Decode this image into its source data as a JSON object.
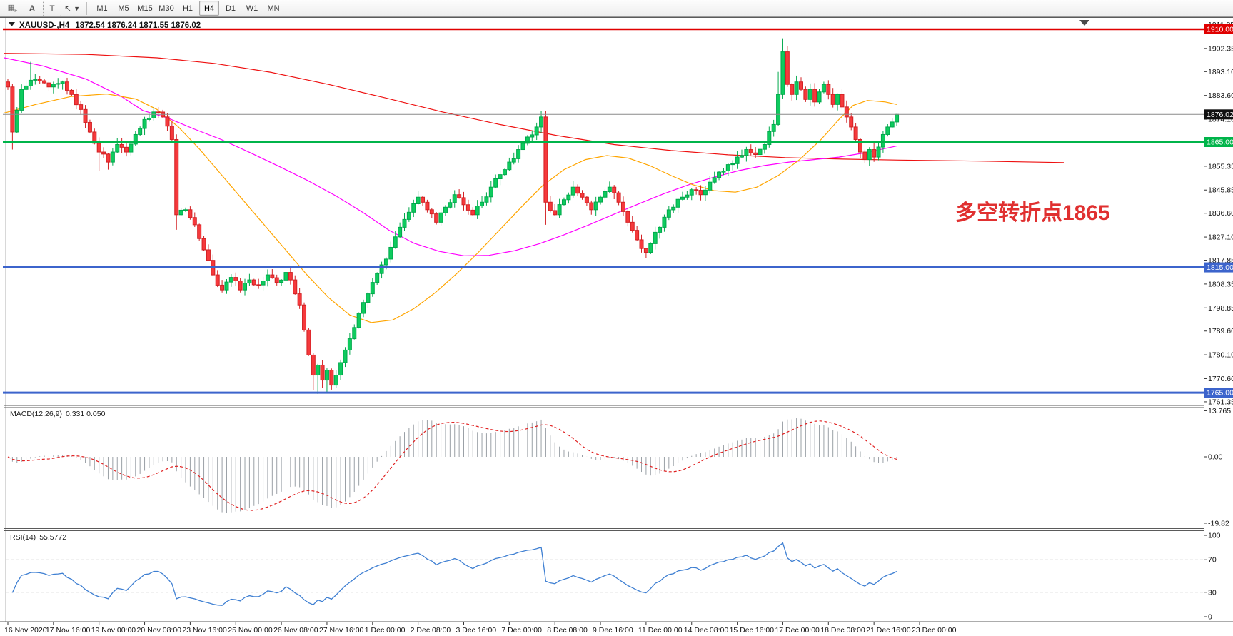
{
  "toolbar": {
    "icon_buttons": [
      {
        "name": "chart-grid-icon",
        "glyph": "▦"
      },
      {
        "name": "font-a-icon",
        "glyph": "A"
      },
      {
        "name": "text-label-icon",
        "glyph": "T"
      },
      {
        "name": "cursor-tool-icon",
        "glyph": "↖"
      },
      {
        "name": "cursor-dropdown-caret-icon",
        "glyph": "▾"
      }
    ],
    "timeframes": [
      "M1",
      "M5",
      "M15",
      "M30",
      "H1",
      "H4",
      "D1",
      "W1",
      "MN"
    ],
    "active_timeframe": "H4"
  },
  "title_bar": {
    "symbol_label": "XAUUSD-,H4",
    "ohlc_text": "1872.54 1876.24 1871.55 1876.02"
  },
  "annotation": {
    "text": "多空转折点1865",
    "color": "#e03030"
  },
  "indicators": {
    "macd_label": "MACD(12,26,9)",
    "macd_values": "0.331 0.050",
    "rsi_label": "RSI(14)",
    "rsi_value": "55.5772"
  },
  "axis": {
    "price_ticks": [
      {
        "label": "1911.85",
        "price": 1911.85
      },
      {
        "label": "1902.35",
        "price": 1902.35
      },
      {
        "label": "1893.10",
        "price": 1893.1
      },
      {
        "label": "1883.60",
        "price": 1883.6
      },
      {
        "label": "1874.10",
        "price": 1874.1
      },
      {
        "label": "1855.35",
        "price": 1855.35
      },
      {
        "label": "1845.85",
        "price": 1845.85
      },
      {
        "label": "1836.60",
        "price": 1836.6
      },
      {
        "label": "1827.10",
        "price": 1827.1
      },
      {
        "label": "1817.85",
        "price": 1817.85
      },
      {
        "label": "1808.35",
        "price": 1808.35
      },
      {
        "label": "1798.85",
        "price": 1798.85
      },
      {
        "label": "1789.60",
        "price": 1789.6
      },
      {
        "label": "1780.10",
        "price": 1780.1
      },
      {
        "label": "1770.60",
        "price": 1770.6
      },
      {
        "label": "1761.35",
        "price": 1761.35
      }
    ],
    "macd_ticks": [
      {
        "label": "13.765",
        "value": 13.765
      },
      {
        "label": "0.00",
        "value": 0
      },
      {
        "label": "-19.82",
        "value": -19.82
      }
    ],
    "rsi_ticks": [
      {
        "label": "100",
        "value": 100
      },
      {
        "label": "70",
        "value": 70
      },
      {
        "label": "30",
        "value": 30
      },
      {
        "label": "0",
        "value": 0
      }
    ],
    "time_labels": [
      "16 Nov 2020",
      "17 Nov 16:00",
      "19 Nov 00:00",
      "20 Nov 08:00",
      "23 Nov 16:00",
      "25 Nov 00:00",
      "26 Nov 08:00",
      "27 Nov 16:00",
      "1 Dec 00:00",
      "2 Dec 08:00",
      "3 Dec 16:00",
      "7 Dec 00:00",
      "8 Dec 08:00",
      "9 Dec 16:00",
      "11 Dec 00:00",
      "14 Dec 08:00",
      "15 Dec 16:00",
      "17 Dec 00:00",
      "18 Dec 08:00",
      "21 Dec 16:00",
      "23 Dec 00:00"
    ]
  },
  "chart_data": {
    "type": "candlestick",
    "symbol": "XAUUSD",
    "timeframe": "H4",
    "current_bar": {
      "open": 1872.54,
      "high": 1876.24,
      "low": 1871.55,
      "close": 1876.02
    },
    "visible_price_range": [
      1761.35,
      1911.85
    ],
    "bars_per_time_label": 10,
    "bar_count": 196,
    "styles": {
      "up_fill": "#0ecb5e",
      "up_stroke": "#00a84b",
      "down_fill": "#f5393c",
      "down_stroke": "#d22124",
      "bid_line_color": "#8a8a8a",
      "bid_badge_color": "#111111"
    },
    "price_swings": [
      [
        0,
        1887
      ],
      [
        1,
        1869
      ],
      [
        3,
        1886
      ],
      [
        6,
        1890
      ],
      [
        9,
        1887
      ],
      [
        12,
        1889
      ],
      [
        14,
        1884
      ],
      [
        16,
        1878
      ],
      [
        18,
        1869
      ],
      [
        20,
        1861
      ],
      [
        22,
        1857
      ],
      [
        24,
        1864
      ],
      [
        26,
        1861
      ],
      [
        28,
        1868
      ],
      [
        30,
        1874
      ],
      [
        32,
        1877
      ],
      [
        34,
        1875
      ],
      [
        36,
        1866
      ],
      [
        37,
        1836
      ],
      [
        39,
        1838
      ],
      [
        41,
        1832
      ],
      [
        43,
        1822
      ],
      [
        45,
        1812
      ],
      [
        47,
        1806
      ],
      [
        49,
        1811
      ],
      [
        51,
        1806
      ],
      [
        53,
        1810
      ],
      [
        55,
        1808
      ],
      [
        57,
        1812
      ],
      [
        59,
        1809
      ],
      [
        61,
        1813
      ],
      [
        62,
        1810
      ],
      [
        64,
        1800
      ],
      [
        65,
        1790
      ],
      [
        66,
        1780
      ],
      [
        67,
        1772
      ],
      [
        68,
        1776
      ],
      [
        69,
        1770
      ],
      [
        70,
        1774
      ],
      [
        71,
        1768
      ],
      [
        72,
        1772
      ],
      [
        73,
        1777
      ],
      [
        74,
        1782
      ],
      [
        76,
        1791
      ],
      [
        78,
        1801
      ],
      [
        80,
        1809
      ],
      [
        82,
        1816
      ],
      [
        84,
        1823
      ],
      [
        86,
        1831
      ],
      [
        88,
        1837
      ],
      [
        90,
        1843
      ],
      [
        92,
        1838
      ],
      [
        94,
        1833
      ],
      [
        96,
        1839
      ],
      [
        98,
        1844
      ],
      [
        100,
        1840
      ],
      [
        102,
        1836
      ],
      [
        104,
        1841
      ],
      [
        106,
        1847
      ],
      [
        108,
        1852
      ],
      [
        110,
        1857
      ],
      [
        112,
        1862
      ],
      [
        114,
        1867
      ],
      [
        116,
        1871
      ],
      [
        117,
        1875
      ],
      [
        118,
        1841
      ],
      [
        120,
        1836
      ],
      [
        122,
        1842
      ],
      [
        124,
        1847
      ],
      [
        126,
        1843
      ],
      [
        128,
        1838
      ],
      [
        130,
        1843
      ],
      [
        132,
        1847
      ],
      [
        134,
        1841
      ],
      [
        136,
        1833
      ],
      [
        138,
        1826
      ],
      [
        140,
        1821
      ],
      [
        142,
        1829
      ],
      [
        144,
        1835
      ],
      [
        146,
        1839
      ],
      [
        148,
        1843
      ],
      [
        150,
        1846
      ],
      [
        152,
        1844
      ],
      [
        154,
        1849
      ],
      [
        156,
        1853
      ],
      [
        158,
        1856
      ],
      [
        160,
        1859
      ],
      [
        162,
        1862
      ],
      [
        164,
        1860
      ],
      [
        166,
        1864
      ],
      [
        168,
        1872
      ],
      [
        169,
        1884
      ],
      [
        170,
        1901
      ],
      [
        171,
        1888
      ],
      [
        172,
        1884
      ],
      [
        173,
        1889
      ],
      [
        174,
        1886
      ],
      [
        175,
        1882
      ],
      [
        176,
        1886
      ],
      [
        177,
        1881
      ],
      [
        178,
        1885
      ],
      [
        179,
        1888
      ],
      [
        180,
        1884
      ],
      [
        181,
        1880
      ],
      [
        182,
        1884
      ],
      [
        183,
        1879
      ],
      [
        184,
        1875
      ],
      [
        185,
        1871
      ],
      [
        186,
        1866
      ],
      [
        187,
        1861
      ],
      [
        188,
        1858
      ],
      [
        189,
        1862
      ],
      [
        190,
        1859
      ],
      [
        191,
        1863
      ],
      [
        192,
        1868
      ],
      [
        193,
        1871
      ],
      [
        194,
        1873
      ],
      [
        195,
        1876.02
      ]
    ],
    "wick_overrides": {
      "1": {
        "low": 1862
      },
      "5": {
        "high": 1897
      },
      "20": {
        "low": 1853.5
      },
      "22": {
        "low": 1854
      },
      "37": {
        "low": 1830
      },
      "67": {
        "low": 1766
      },
      "68": {
        "low": 1764.5
      },
      "69": {
        "low": 1767
      },
      "70": {
        "low": 1764.8
      },
      "71": {
        "low": 1766.2
      },
      "117": {
        "high": 1877.5
      },
      "118": {
        "low": 1832
      },
      "169": {
        "high": 1893
      },
      "170": {
        "high": 1906.4
      },
      "195": {
        "high": 1876.24,
        "low": 1871.55
      }
    },
    "horizontal_lines": [
      {
        "label": "1910.00",
        "price": 1910,
        "color": "#e00000",
        "width": 2.5
      },
      {
        "label": "1865.00",
        "price": 1865,
        "color": "#00b44a",
        "width": 3
      },
      {
        "label": "1815.00",
        "price": 1815,
        "color": "#3c64cc",
        "width": 3
      },
      {
        "label": "1765.00",
        "price": 1765,
        "color": "#3c64cc",
        "width": 3
      }
    ],
    "bid_line": {
      "label": "1876.02",
      "price": 1876.02
    },
    "moving_averages": [
      {
        "name": "ma-slow",
        "color": "#ee1111",
        "points": [
          [
            6,
            1900.4
          ],
          [
            120,
            1900
          ],
          [
            220,
            1898.6
          ],
          [
            300,
            1896.4
          ],
          [
            380,
            1892.8
          ],
          [
            460,
            1888
          ],
          [
            540,
            1882.6
          ],
          [
            620,
            1877
          ],
          [
            700,
            1872
          ],
          [
            780,
            1867.6
          ],
          [
            860,
            1864
          ],
          [
            940,
            1861.6
          ],
          [
            1020,
            1859.9
          ],
          [
            1100,
            1858.8
          ],
          [
            1180,
            1858.2
          ],
          [
            1260,
            1857.8
          ],
          [
            1370,
            1857.4
          ],
          [
            1490,
            1856.8
          ]
        ]
      },
      {
        "name": "ma-medium",
        "color": "#ff00ff",
        "points": [
          [
            6,
            1898.6
          ],
          [
            60,
            1895.4
          ],
          [
            120,
            1890.2
          ],
          [
            170,
            1883.2
          ],
          [
            200,
            1877.6
          ],
          [
            235,
            1874.6
          ],
          [
            270,
            1870.4
          ],
          [
            310,
            1866
          ],
          [
            350,
            1860.8
          ],
          [
            390,
            1855.4
          ],
          [
            430,
            1849.8
          ],
          [
            470,
            1843.6
          ],
          [
            510,
            1836.6
          ],
          [
            545,
            1829.8
          ],
          [
            580,
            1824.6
          ],
          [
            615,
            1821.4
          ],
          [
            650,
            1819.6
          ],
          [
            685,
            1819.8
          ],
          [
            720,
            1821.6
          ],
          [
            755,
            1824.4
          ],
          [
            790,
            1828
          ],
          [
            825,
            1832
          ],
          [
            860,
            1836.2
          ],
          [
            895,
            1840.4
          ],
          [
            930,
            1844.4
          ],
          [
            965,
            1848
          ],
          [
            1000,
            1851
          ],
          [
            1035,
            1853.6
          ],
          [
            1070,
            1855.6
          ],
          [
            1105,
            1857
          ],
          [
            1140,
            1858
          ],
          [
            1175,
            1859
          ],
          [
            1210,
            1860.6
          ],
          [
            1256,
            1863.4
          ]
        ]
      },
      {
        "name": "ma-fast",
        "color": "#ffa500",
        "points": [
          [
            6,
            1876.6
          ],
          [
            50,
            1880
          ],
          [
            100,
            1883.2
          ],
          [
            150,
            1884.2
          ],
          [
            190,
            1882.2
          ],
          [
            220,
            1878
          ],
          [
            250,
            1871
          ],
          [
            280,
            1862
          ],
          [
            310,
            1852
          ],
          [
            340,
            1842
          ],
          [
            370,
            1832
          ],
          [
            400,
            1822
          ],
          [
            430,
            1812
          ],
          [
            460,
            1803
          ],
          [
            490,
            1796
          ],
          [
            520,
            1793
          ],
          [
            550,
            1794
          ],
          [
            580,
            1798.6
          ],
          [
            610,
            1805
          ],
          [
            640,
            1812.6
          ],
          [
            670,
            1821
          ],
          [
            700,
            1830
          ],
          [
            730,
            1839
          ],
          [
            760,
            1847.6
          ],
          [
            790,
            1854
          ],
          [
            820,
            1858
          ],
          [
            850,
            1859.6
          ],
          [
            880,
            1858.6
          ],
          [
            910,
            1855.6
          ],
          [
            940,
            1851.6
          ],
          [
            970,
            1848
          ],
          [
            1000,
            1845.6
          ],
          [
            1030,
            1845
          ],
          [
            1060,
            1847
          ],
          [
            1090,
            1851.6
          ],
          [
            1120,
            1858
          ],
          [
            1150,
            1866
          ],
          [
            1175,
            1874
          ],
          [
            1195,
            1879.6
          ],
          [
            1215,
            1881.6
          ],
          [
            1240,
            1881
          ],
          [
            1256,
            1880
          ]
        ]
      }
    ],
    "macd": {
      "fast": 12,
      "slow": 26,
      "signal": 9,
      "display_values": [
        0.331,
        0.05
      ],
      "hist_color": "#9aa0a6",
      "signal_color": "#e02020",
      "axis_range": [
        -19.82,
        13.765
      ]
    },
    "rsi": {
      "period": 14,
      "current_value": 55.5772,
      "color": "#3e7fd2",
      "levels": [
        70,
        30
      ],
      "axis_range": [
        0,
        100
      ]
    }
  }
}
